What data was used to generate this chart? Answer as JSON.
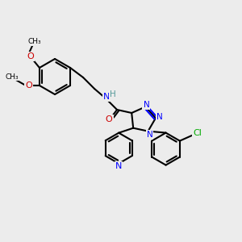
{
  "bg_color": "#ececec",
  "bond_color": "#000000",
  "bond_lw": 1.5,
  "atom_colors": {
    "N": "#0000ff",
    "O": "#cc0000",
    "Cl": "#00aa00",
    "H": "#559999",
    "C": "#000000"
  },
  "font_size": 7.5,
  "font_size_small": 6.5
}
